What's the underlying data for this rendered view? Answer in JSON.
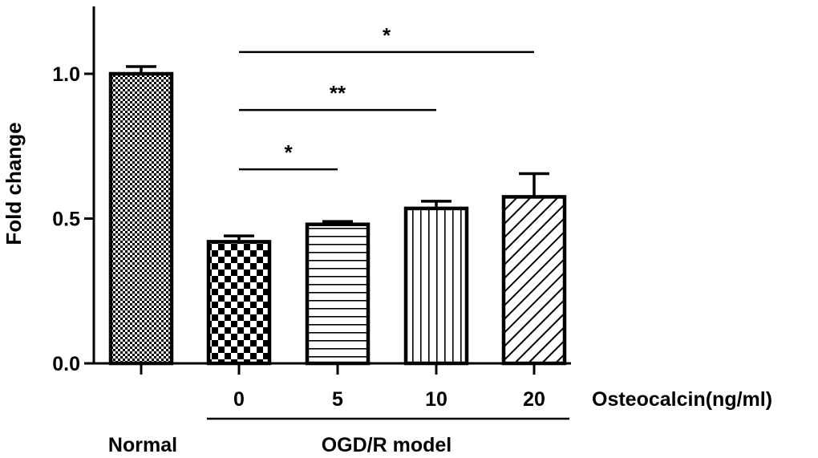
{
  "chart_data": {
    "type": "bar",
    "ylabel": "Fold change",
    "ylim": [
      0,
      1.25
    ],
    "yticks": [
      0.0,
      0.5,
      1.0
    ],
    "ytick_labels": [
      "0.0",
      "0.5",
      "1.0"
    ],
    "categories": [
      "Normal",
      "0",
      "5",
      "10",
      "20"
    ],
    "tick_labels": [
      "",
      "0",
      "5",
      "10",
      "20"
    ],
    "values": [
      1.0,
      0.42,
      0.48,
      0.535,
      0.575
    ],
    "errors": [
      0.025,
      0.02,
      0.01,
      0.025,
      0.08
    ],
    "patterns": [
      "fine-checker",
      "checker",
      "horizontal-lines",
      "vertical-lines",
      "diagonal-lines"
    ],
    "x_axis_suffix": "Osteocalcin(ng/ml)",
    "group_labels": {
      "normal": "Normal",
      "model": "OGD/R model"
    },
    "significance": [
      {
        "from": "0",
        "to": "5",
        "label": "*",
        "y": 0.67
      },
      {
        "from": "0",
        "to": "10",
        "label": "**",
        "y": 0.875
      },
      {
        "from": "0",
        "to": "20",
        "label": "*",
        "y": 1.075
      }
    ],
    "colors": {
      "bar_stroke": "#000000",
      "pattern": "#000000",
      "background": "#ffffff"
    }
  }
}
